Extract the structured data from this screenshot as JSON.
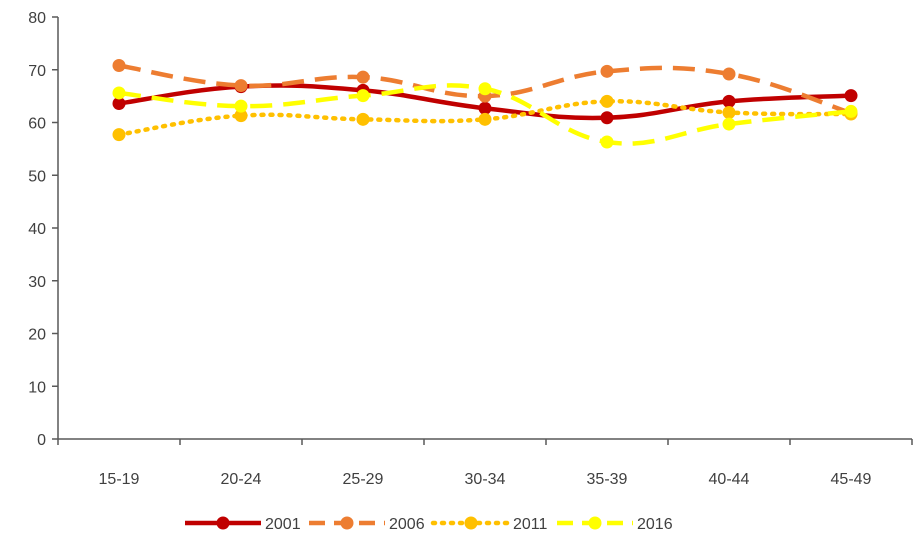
{
  "chart_data": {
    "type": "line",
    "title": "",
    "xlabel": "",
    "ylabel": "",
    "categories": [
      "15-19",
      "20-24",
      "25-29",
      "30-34",
      "35-39",
      "40-44",
      "45-49"
    ],
    "ylim": [
      0,
      80
    ],
    "yticks": [
      "0",
      "10",
      "20",
      "30",
      "40",
      "50",
      "60",
      "70",
      "80"
    ],
    "grid": false,
    "legend_position": "bottom",
    "series": [
      {
        "name": "2001",
        "values": [
          63.6,
          66.8,
          66.1,
          62.7,
          60.9,
          64.0,
          65.1
        ],
        "color": "#c00000",
        "style": "solid"
      },
      {
        "name": "2006",
        "values": [
          70.8,
          67.0,
          68.6,
          65.0,
          69.7,
          69.2,
          61.8
        ],
        "color": "#ed7d31",
        "style": "dashed"
      },
      {
        "name": "2011",
        "values": [
          57.7,
          61.3,
          60.6,
          60.6,
          64.0,
          61.9,
          61.6
        ],
        "color": "#ffc000",
        "style": "dotted"
      },
      {
        "name": "2016",
        "values": [
          65.6,
          63.1,
          65.1,
          66.4,
          56.3,
          59.7,
          62.1
        ],
        "color": "#ffff00",
        "style": "dashed"
      }
    ]
  }
}
